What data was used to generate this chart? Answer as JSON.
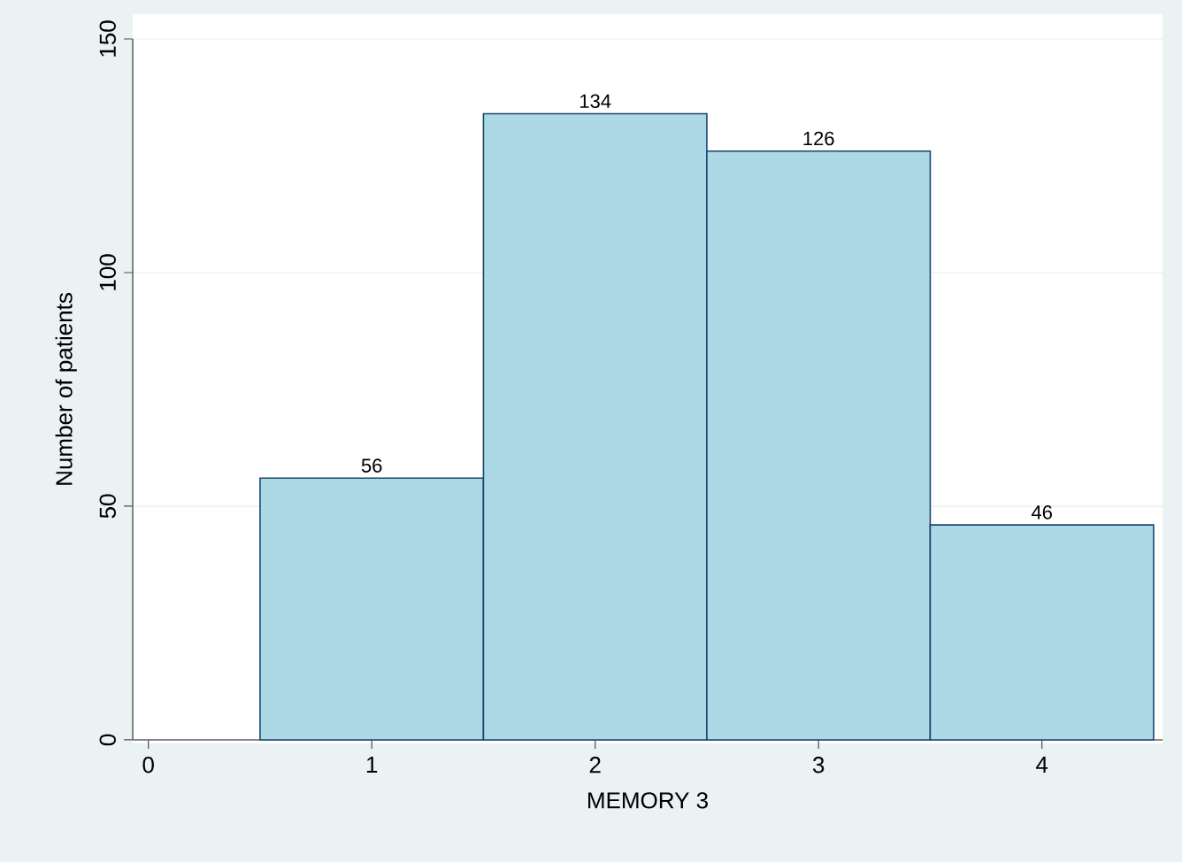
{
  "chart_data": {
    "type": "histogram",
    "xlabel": "MEMORY 3",
    "ylabel": "Number of patients",
    "bins": [
      0.5,
      1.5,
      2.5,
      3.5,
      4.5
    ],
    "values": [
      56,
      134,
      126,
      46
    ],
    "color": "#add8e6",
    "data_labels": true,
    "grid": "y",
    "xlim": [
      -0.07,
      4.54
    ],
    "ylim": [
      0,
      150
    ],
    "xticks": [
      0,
      1,
      2,
      3,
      4
    ],
    "yticks": [
      0,
      50,
      100,
      150
    ]
  }
}
